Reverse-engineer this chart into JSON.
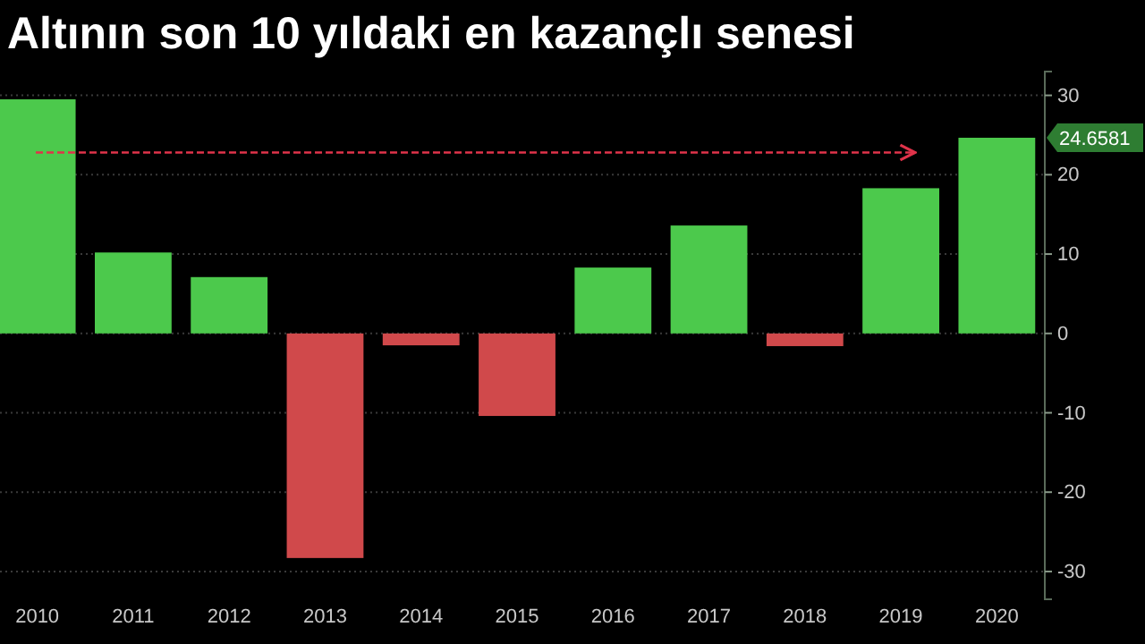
{
  "chart_data": {
    "type": "bar",
    "title": "Altının son 10 yıldaki en kazançlı senesi",
    "categories": [
      "2010",
      "2011",
      "2012",
      "2013",
      "2014",
      "2015",
      "2016",
      "2017",
      "2018",
      "2019",
      "2020"
    ],
    "values": [
      29.5,
      10.2,
      7.1,
      -28.3,
      -1.5,
      -10.4,
      8.3,
      13.6,
      -1.6,
      18.3,
      24.6581
    ],
    "colors": [
      "#4cc94c",
      "#4cc94c",
      "#4cc94c",
      "#d0494b",
      "#d0494b",
      "#d0494b",
      "#4cc94c",
      "#4cc94c",
      "#d0494b",
      "#4cc94c",
      "#4cc94c"
    ],
    "ylim": [
      -33.5,
      33
    ],
    "yticks": [
      -30,
      -20,
      -10,
      0,
      10,
      20,
      30
    ],
    "grid": "y",
    "annotations": [
      "24.6581"
    ],
    "ref_lines": [
      {
        "axis": "y",
        "value": 22.8,
        "color": "#e0334a",
        "line_style": "dashed"
      }
    ]
  }
}
